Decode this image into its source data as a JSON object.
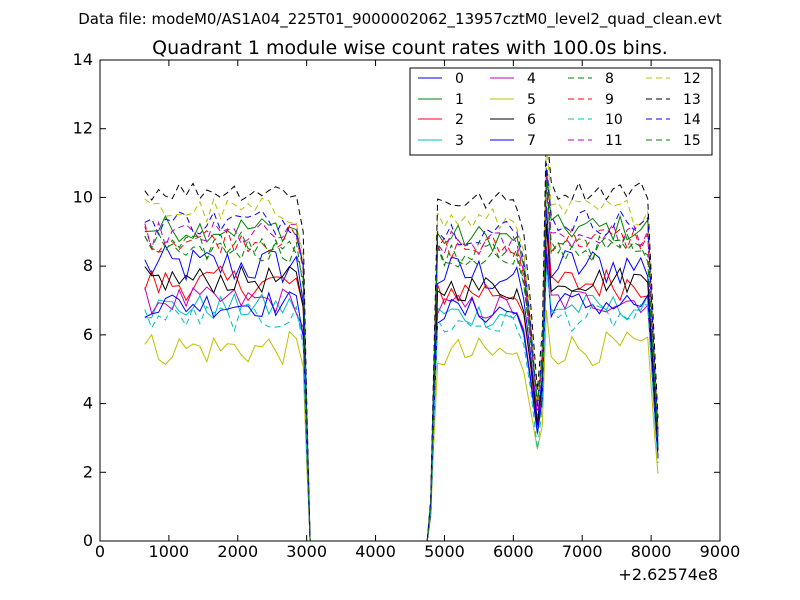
{
  "chart_data": {
    "type": "line",
    "suptitle": "Data file: modeM0/AS1A04_225T01_9000002062_13957cztM0_level2_quad_clean.evt",
    "title": "Quadrant 1 module wise count rates with 100.0s bins.",
    "xlabel": "",
    "ylabel": "",
    "offset_text": "+2.62574e8",
    "xlim": [
      0,
      9000
    ],
    "ylim": [
      0,
      14
    ],
    "xticks": [
      0,
      1000,
      2000,
      3000,
      4000,
      5000,
      6000,
      7000,
      8000,
      9000
    ],
    "yticks": [
      0,
      2,
      4,
      6,
      8,
      10,
      12,
      14
    ],
    "legend_position": "top-right",
    "legend_columns": 4,
    "series": [
      {
        "name": "0",
        "color": "#0000ff",
        "dash": false,
        "level": 8.0,
        "noise": 0.6
      },
      {
        "name": "1",
        "color": "#008000",
        "dash": false,
        "level": 9.1,
        "noise": 0.4
      },
      {
        "name": "2",
        "color": "#ff0000",
        "dash": false,
        "level": 7.5,
        "noise": 0.5
      },
      {
        "name": "3",
        "color": "#00bfbf",
        "dash": false,
        "level": 6.8,
        "noise": 0.4
      },
      {
        "name": "4",
        "color": "#bf00bf",
        "dash": false,
        "level": 7.0,
        "noise": 0.4
      },
      {
        "name": "5",
        "color": "#bfbf00",
        "dash": false,
        "level": 5.6,
        "noise": 0.5
      },
      {
        "name": "6",
        "color": "#000000",
        "dash": false,
        "level": 7.6,
        "noise": 0.4
      },
      {
        "name": "7",
        "color": "#0000ff",
        "dash": false,
        "level": 6.9,
        "noise": 0.4
      },
      {
        "name": "8",
        "color": "#008000",
        "dash": true,
        "level": 8.5,
        "noise": 0.4
      },
      {
        "name": "9",
        "color": "#ff0000",
        "dash": true,
        "level": 8.8,
        "noise": 0.4
      },
      {
        "name": "10",
        "color": "#00bfbf",
        "dash": true,
        "level": 6.5,
        "noise": 0.4
      },
      {
        "name": "11",
        "color": "#bf00bf",
        "dash": true,
        "level": 8.9,
        "noise": 0.4
      },
      {
        "name": "12",
        "color": "#bfbf00",
        "dash": true,
        "level": 9.6,
        "noise": 0.4
      },
      {
        "name": "13",
        "color": "#000000",
        "dash": true,
        "level": 10.2,
        "noise": 0.3
      },
      {
        "name": "14",
        "color": "#0000ff",
        "dash": true,
        "level": 9.3,
        "noise": 0.4
      },
      {
        "name": "15",
        "color": "#008000",
        "dash": true,
        "level": 8.6,
        "noise": 0.4
      }
    ]
  }
}
